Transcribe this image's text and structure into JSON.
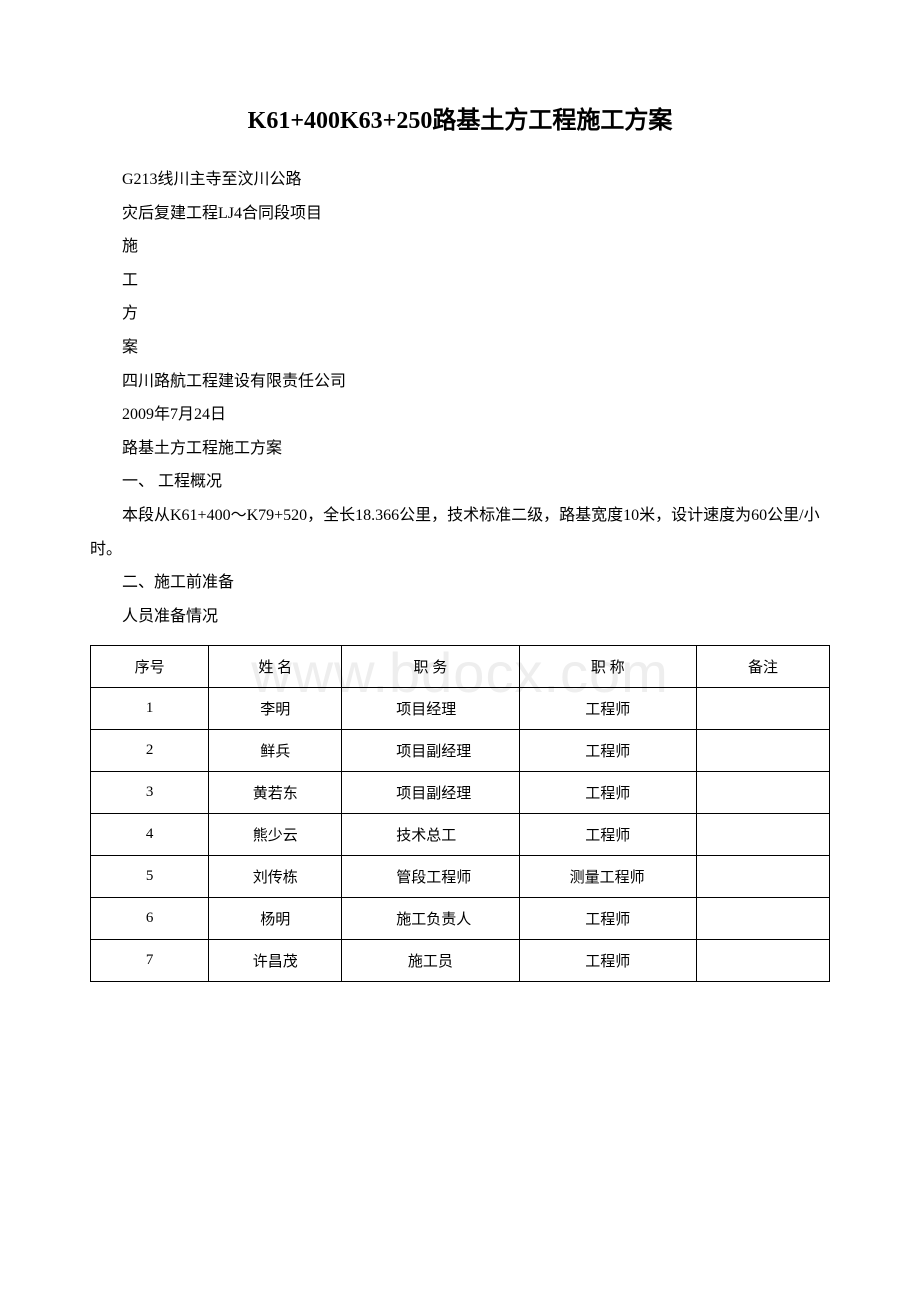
{
  "watermark": "www.bdocx.com",
  "title": "K61+400K63+250路基土方工程施工方案",
  "paragraphs": {
    "p1": "G213线川主寺至汶川公路",
    "p2": "灾后复建工程LJ4合同段项目",
    "p3": "施",
    "p4": "工",
    "p5": "方",
    "p6": "案",
    "p7": "四川路航工程建设有限责任公司",
    "p8": "2009年7月24日",
    "p9": "路基土方工程施工方案",
    "p10": "一、 工程概况",
    "p11": "本段从K61+400～K79+520，全长18.366公里，技术标准二级，路基宽度10米，设计速度为60公里/小时。",
    "p12": "二、施工前准备",
    "p13": "人员准备情况"
  },
  "table": {
    "headers": {
      "h1": "序号",
      "h2": "姓 名",
      "h3": "职 务",
      "h4": "职 称",
      "h5": "备注"
    },
    "rows": [
      {
        "seq": "1",
        "name": "李明",
        "duty": "项目经理",
        "title": "工程师",
        "remark": ""
      },
      {
        "seq": "2",
        "name": "鲜兵",
        "duty": "项目副经理",
        "title": "工程师",
        "remark": ""
      },
      {
        "seq": "3",
        "name": "黄若东",
        "duty": "项目副经理",
        "title": "工程师",
        "remark": ""
      },
      {
        "seq": "4",
        "name": "熊少云",
        "duty": "技术总工",
        "title": "工程师",
        "remark": ""
      },
      {
        "seq": "5",
        "name": "刘传栋",
        "duty": "管段工程师",
        "title": "测量工程师",
        "remark": ""
      },
      {
        "seq": "6",
        "name": "杨明",
        "duty": "施工负责人",
        "title": "工程师",
        "remark": ""
      },
      {
        "seq": "7",
        "name": "许昌茂",
        "duty": "施工员",
        "title": "工程师",
        "remark": ""
      }
    ]
  }
}
